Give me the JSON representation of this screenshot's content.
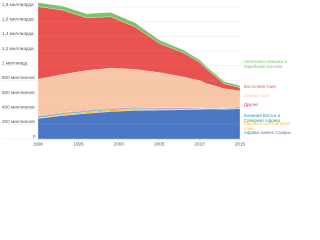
{
  "chart_data": {
    "type": "stacked-area",
    "x": [
      1990,
      1993,
      1996,
      1999,
      2002,
      2005,
      2008,
      2010,
      2011,
      2012,
      2013,
      2015
    ],
    "xlim": [
      1990,
      2015
    ],
    "xticks": [
      1990,
      1995,
      2000,
      2005,
      2010,
      2015
    ],
    "ylim": [
      0,
      1850
    ],
    "yticks": [
      0,
      {
        "value": 200,
        "label": "200 миллионов"
      },
      {
        "value": 400,
        "label": "400 миллионов"
      },
      {
        "value": 600,
        "label": "600 миллионов"
      },
      {
        "value": 800,
        "label": "800 миллионов"
      },
      {
        "value": 1000,
        "label": "1 миллиард"
      },
      {
        "value": 1200,
        "label": "1,2 миллиарда"
      },
      {
        "value": 1400,
        "label": "1,4 миллиарда"
      },
      {
        "value": 1600,
        "label": "1,6 миллиарда"
      },
      {
        "value": 1800,
        "label": "1,8 миллиарда"
      }
    ],
    "grid": true,
    "series": [
      {
        "name": "Африка южнее Сахары",
        "color": "#4a78c6",
        "values": [
          280,
          320,
          350,
          375,
          390,
          395,
          400,
          405,
          410,
          410,
          405,
          415
        ]
      },
      {
        "name": "Европа и Центральная Азия",
        "color": "#f0c232",
        "values": [
          10,
          15,
          20,
          25,
          20,
          12,
          8,
          6,
          5,
          5,
          5,
          5
        ]
      },
      {
        "name": "Ближний Восток и Северная Африка",
        "color": "#2f9a9a",
        "values": [
          15,
          14,
          13,
          12,
          10,
          9,
          8,
          7,
          7,
          8,
          9,
          15
        ]
      },
      {
        "name": "Другие",
        "color": "#d6337f",
        "values": [
          10,
          10,
          10,
          10,
          10,
          10,
          10,
          8,
          8,
          8,
          7,
          6
        ]
      },
      {
        "name": "Южная Азия",
        "color": "#f8c7a8",
        "values": [
          500,
          520,
          540,
          545,
          520,
          480,
          420,
          370,
          320,
          290,
          260,
          215
        ]
      },
      {
        "name": "Восточная Азия",
        "color": "#e8534f",
        "values": [
          990,
          880,
          720,
          700,
          580,
          400,
          330,
          250,
          190,
          130,
          70,
          45
        ]
      },
      {
        "name": "Латинская Америка и Карибский бассейн",
        "color": "#7ac36a",
        "values": [
          55,
          55,
          55,
          60,
          55,
          45,
          38,
          34,
          32,
          30,
          29,
          26
        ]
      }
    ]
  }
}
